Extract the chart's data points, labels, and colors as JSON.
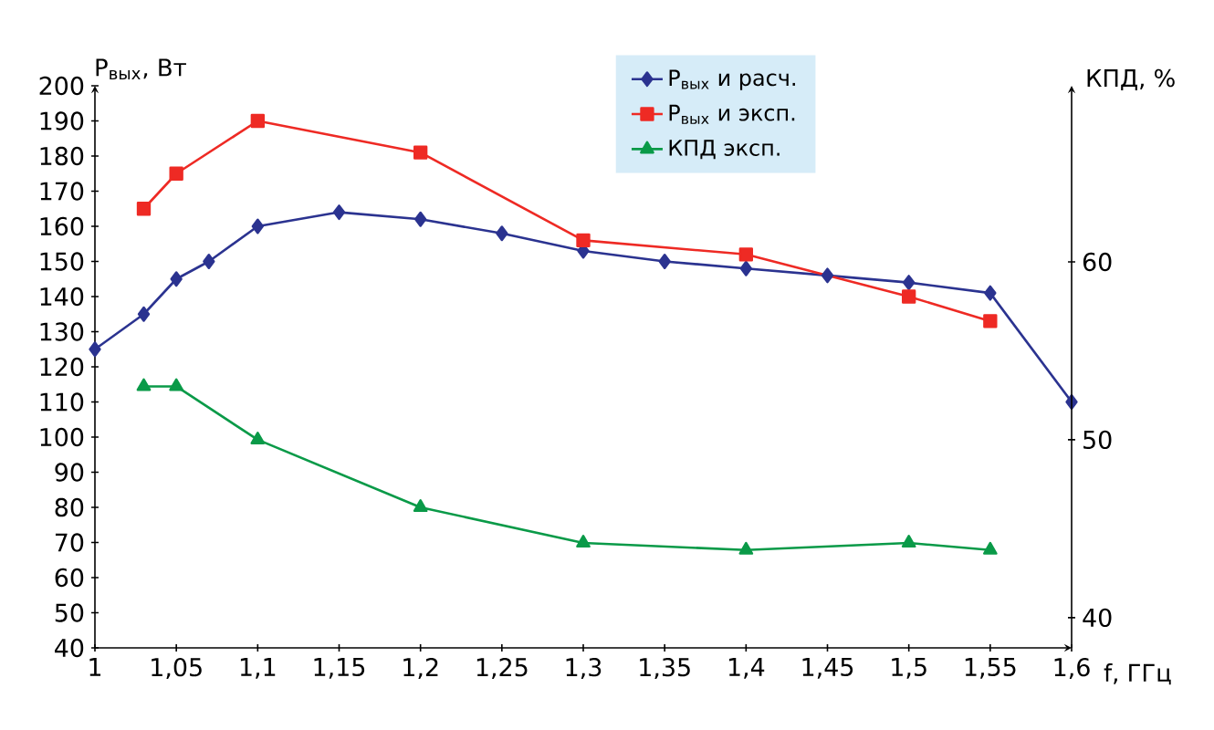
{
  "chart_data": {
    "type": "line",
    "ylabel": "P$_{вых}$, Вт",
    "y2label": "КПД, %",
    "xlabel": "f, ГГц",
    "xlim": [
      1,
      1.6
    ],
    "xticks": [
      1,
      {
        "value": 1.05,
        "label": "1,05"
      },
      {
        "value": 1.1,
        "label": "1,1"
      },
      {
        "value": 1.15,
        "label": "1,15"
      },
      {
        "value": 1.2,
        "label": "1,2"
      },
      {
        "value": 1.25,
        "label": "1,25"
      },
      {
        "value": 1.3,
        "label": "1,3"
      },
      {
        "value": 1.35,
        "label": "1,35"
      },
      {
        "value": 1.4,
        "label": "1,4"
      },
      {
        "value": 1.45,
        "label": "1,45"
      },
      {
        "value": 1.5,
        "label": "1,5"
      },
      {
        "value": 1.55,
        "label": "1,55"
      },
      {
        "value": 1.6,
        "label": "1,6"
      }
    ],
    "ylim": [
      40,
      200
    ],
    "yticks": [
      40,
      50,
      60,
      70,
      80,
      90,
      100,
      110,
      120,
      130,
      140,
      150,
      160,
      170,
      180,
      190,
      200
    ],
    "y2lim": [
      38.3,
      69.9
    ],
    "y2ticks": [
      40,
      50,
      60
    ],
    "legend": "top right",
    "grid": false,
    "series": [
      {
        "name": "P$_{вых}$ и расч.",
        "color": "#2b3390",
        "marker": "diamond",
        "x": [
          1,
          1.03,
          1.05,
          1.07,
          1.1,
          1.15,
          1.2,
          1.25,
          1.3,
          1.35,
          1.4,
          1.45,
          1.5,
          1.55,
          1.6
        ],
        "values": [
          125,
          135,
          145,
          150,
          160,
          164,
          162,
          158,
          153,
          150,
          148,
          146,
          144,
          141,
          110
        ]
      },
      {
        "name": "P$_{вых}$ и эксп.",
        "color": "#ee2a24",
        "marker": "square",
        "x": [
          1.03,
          1.05,
          1.1,
          1.2,
          1.3,
          1.4,
          1.5,
          1.55
        ],
        "values": [
          165,
          175,
          190,
          181,
          156,
          152,
          140,
          133
        ]
      },
      {
        "name": "КПД эксп.",
        "color": "#0a9a48",
        "marker": "triangle",
        "axis": "y2",
        "x": [
          1.03,
          1.05,
          1.1,
          1.2,
          1.3,
          1.4,
          1.5,
          1.55
        ],
        "values": [
          53,
          53,
          50,
          46.2,
          44.2,
          43.8,
          44.2,
          43.8
        ]
      }
    ]
  }
}
